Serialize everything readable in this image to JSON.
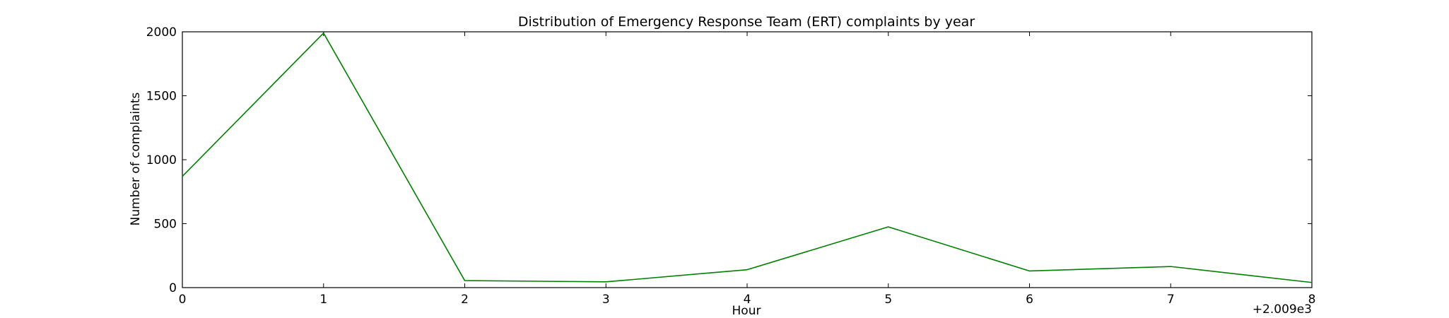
{
  "chart_data": {
    "type": "line",
    "title": "Distribution of  Emergency Response Team (ERT) complaints by year",
    "xlabel": "Hour",
    "ylabel": "Number of complaints",
    "x_offset_text": "+2.009e3",
    "x": [
      2009,
      2010,
      2011,
      2012,
      2013,
      2014,
      2015,
      2016,
      2017
    ],
    "xlim": [
      2009,
      2017
    ],
    "x_ticks": [
      2009,
      2010,
      2011,
      2012,
      2013,
      2014,
      2015,
      2016,
      2017
    ],
    "x_tick_labels": [
      "0",
      "1",
      "2",
      "3",
      "4",
      "5",
      "6",
      "7",
      "8"
    ],
    "ylim": [
      0,
      2000
    ],
    "y_ticks": [
      0,
      500,
      1000,
      1500,
      2000
    ],
    "y_tick_labels": [
      "0",
      "500",
      "1000",
      "1500",
      "2000"
    ],
    "grid": false,
    "series": [
      {
        "color": "#008000",
        "values": [
          870,
          1990,
          55,
          45,
          140,
          475,
          130,
          165,
          40
        ]
      }
    ]
  }
}
